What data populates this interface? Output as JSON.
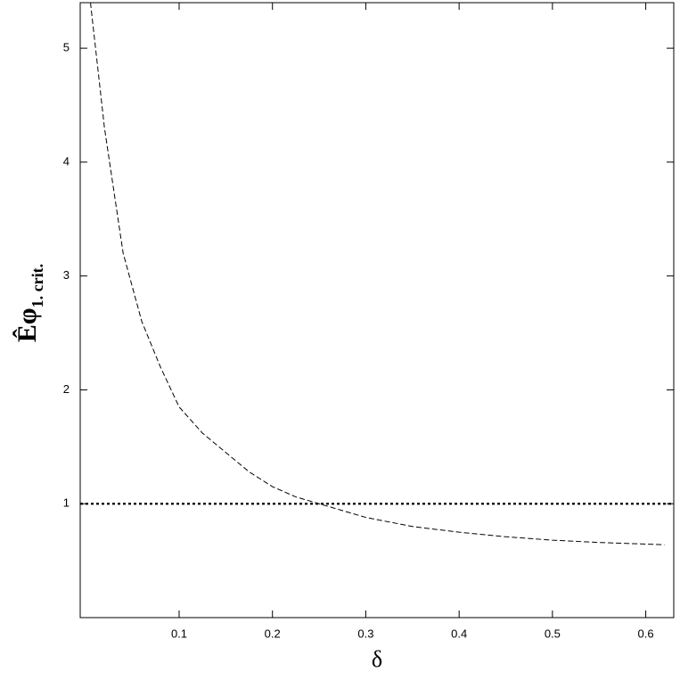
{
  "chart_data": {
    "type": "line",
    "x_label": "δ",
    "y_label": {
      "main": "Êφ",
      "subscript": "1. crit."
    },
    "x": [
      0.005,
      0.02,
      0.04,
      0.06,
      0.08,
      0.1,
      0.125,
      0.15,
      0.175,
      0.2,
      0.225,
      0.25,
      0.3,
      0.35,
      0.4,
      0.45,
      0.5,
      0.55,
      0.62
    ],
    "series": [
      {
        "color": "#000000",
        "style": "dashed",
        "values": [
          5.4,
          4.3,
          3.2,
          2.6,
          2.2,
          1.85,
          1.62,
          1.45,
          1.28,
          1.15,
          1.06,
          1.0,
          0.88,
          0.8,
          0.75,
          0.71,
          0.68,
          0.66,
          0.64
        ]
      }
    ],
    "hline": {
      "y": 1,
      "color": "#000000",
      "style": "dotted"
    },
    "xlim": [
      -0.006,
      0.63
    ],
    "ylim": [
      0,
      5.4
    ],
    "xticks": [
      0.1,
      0.2,
      0.3,
      0.4,
      0.5,
      0.6
    ],
    "yticks": [
      1,
      2,
      3,
      4,
      5
    ],
    "grid": false
  }
}
